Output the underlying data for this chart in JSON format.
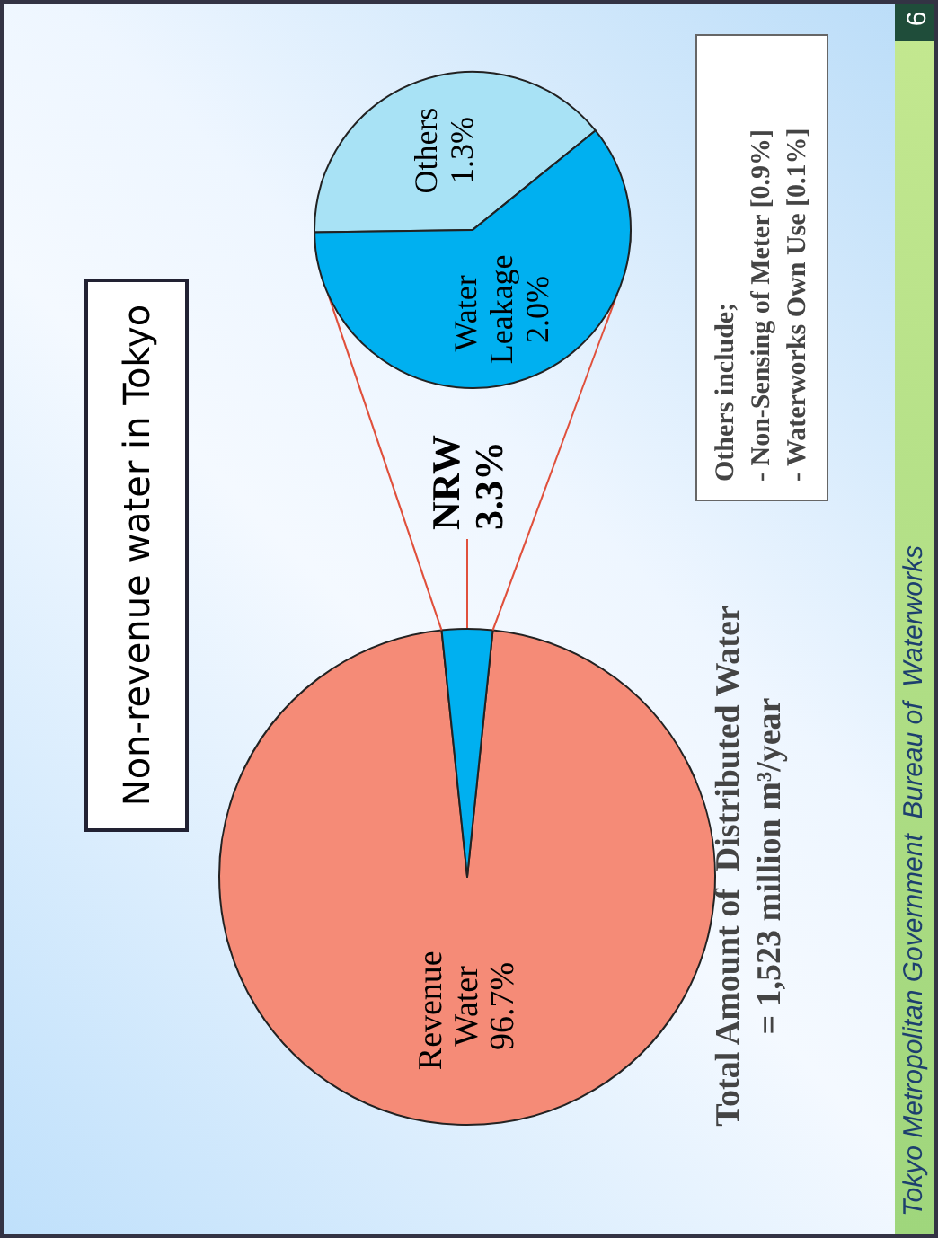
{
  "chart_data": [
    {
      "type": "pie",
      "title": "Non-revenue water in Tokyo",
      "categories": [
        "Revenue Water",
        "NRW"
      ],
      "values": [
        96.7,
        3.3
      ],
      "value_labels": [
        "96.7%",
        "3.3%"
      ],
      "colors": [
        "#f58b77",
        "#00b0f0"
      ],
      "annotations": [
        "Total Amount of  Distributed Water",
        "= 1,523 million m³/year",
        "Tokyo Metropolitan Government  Bureau of  Waterworks",
        "6"
      ]
    },
    {
      "type": "pie",
      "categories": [
        "Others",
        "Water Leakage"
      ],
      "values": [
        1.3,
        2.0
      ],
      "value_labels": [
        "1.3%",
        "2.0%"
      ],
      "colors": [
        "#a8e2f5",
        "#00b0f0"
      ],
      "annotations": [
        "Others include;",
        "- Non-Sensing of Meter [0.9%]",
        "- Waterworks Own Use [0.1%]"
      ]
    }
  ]
}
